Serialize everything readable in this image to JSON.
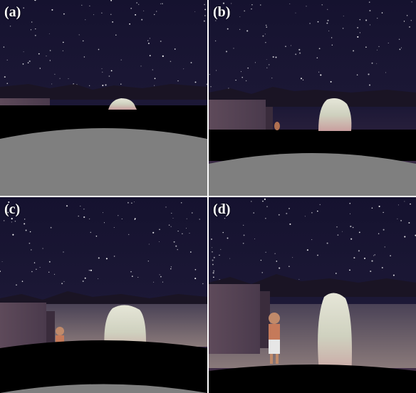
{
  "panels": [
    {
      "label": "(a)"
    },
    {
      "label": "(b)"
    },
    {
      "label": "(c)"
    },
    {
      "label": "(d)"
    }
  ],
  "colors": {
    "sky_top": "#14122e",
    "sky_horizon": "#4a3048",
    "floor": "#7f7f7f",
    "ground_band": "#000000",
    "stone": "#d8d4c4",
    "divider": "#ffffff"
  }
}
